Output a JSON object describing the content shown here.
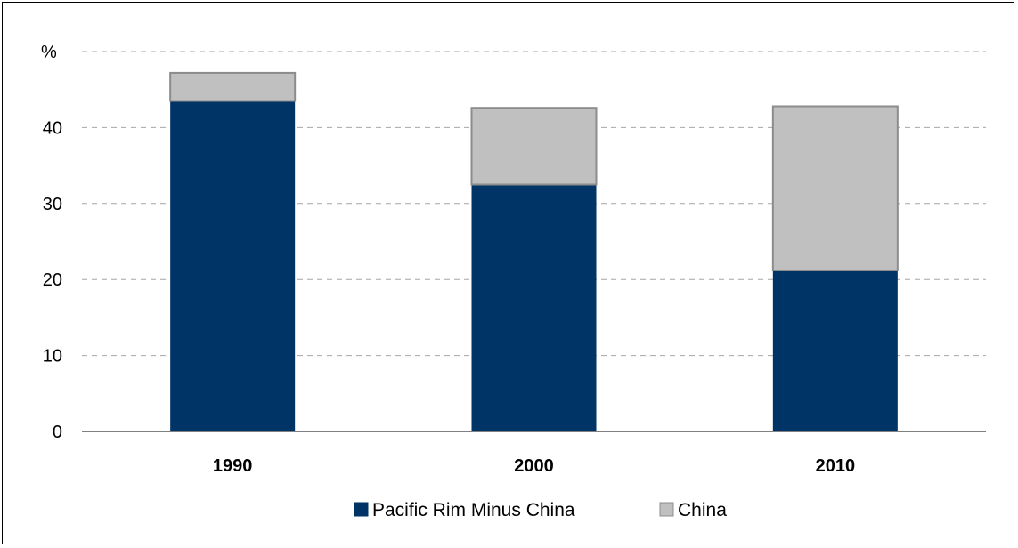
{
  "chart_data": {
    "type": "bar",
    "stacked": true,
    "categories": [
      "1990",
      "2000",
      "2010"
    ],
    "series": [
      {
        "name": "Pacific Rim Minus China",
        "values": [
          43.5,
          32.5,
          21.2
        ],
        "color": "#003366"
      },
      {
        "name": "China",
        "values": [
          3.7,
          10.1,
          21.6
        ],
        "color": "#c0c0c0"
      }
    ],
    "ylabel": "%",
    "ylim": [
      0,
      50
    ],
    "yticks": [
      0,
      10,
      20,
      30,
      40
    ],
    "grid": true,
    "legend_position": "bottom",
    "bar_outline_color": "#8c8c8c"
  }
}
